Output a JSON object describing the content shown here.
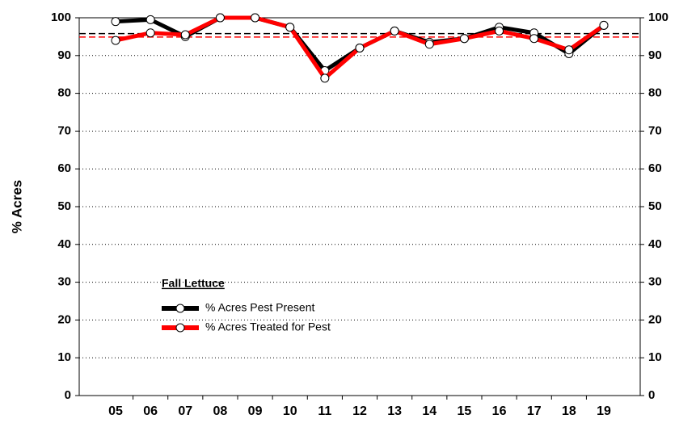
{
  "chart_data": {
    "type": "line",
    "y_label": "% Acres",
    "legend_title": "Fall Lettuce",
    "categories": [
      "05",
      "06",
      "07",
      "08",
      "09",
      "10",
      "11",
      "12",
      "13",
      "14",
      "15",
      "16",
      "17",
      "18",
      "19"
    ],
    "series": [
      {
        "name": "% Acres Pest Present",
        "color": "#000000",
        "values": [
          99,
          99.5,
          95,
          100,
          100,
          97.5,
          86,
          92,
          96.5,
          93.5,
          94.5,
          97.5,
          96,
          90.5,
          98
        ],
        "mean": 95.8
      },
      {
        "name": "% Acres Treated for Pest",
        "color": "#ff0000",
        "values": [
          94,
          96,
          95.5,
          100,
          100,
          97.5,
          84,
          92,
          96.5,
          93,
          94.5,
          96.5,
          94.5,
          91.5,
          98
        ],
        "mean": 94.9
      }
    ],
    "ylim": [
      0,
      100
    ],
    "yticks": [
      0,
      10,
      20,
      30,
      40,
      50,
      60,
      70,
      80,
      90,
      100
    ],
    "y2lim": [
      0,
      100
    ],
    "y2ticks": [
      0,
      10,
      20,
      30,
      40,
      50,
      60,
      70,
      80,
      90,
      100
    ],
    "grid": true
  }
}
